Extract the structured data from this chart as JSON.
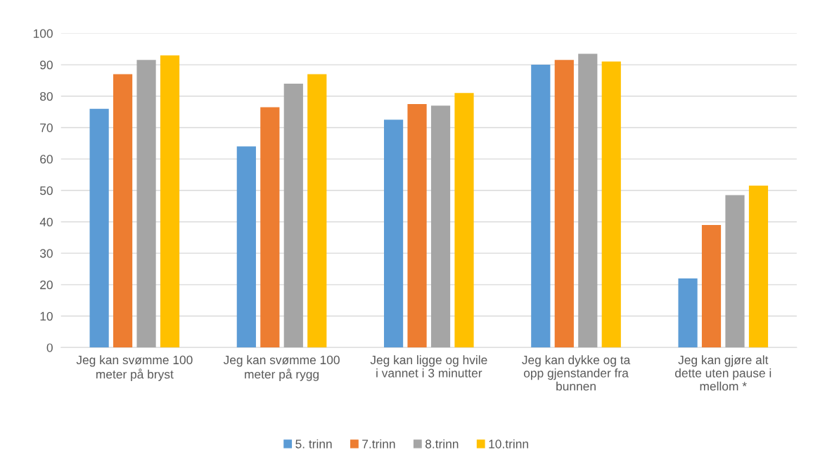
{
  "chart_data": {
    "type": "bar",
    "categories": [
      "Jeg kan svømme 100\nmeter på bryst",
      "Jeg kan svømme 100\nmeter på rygg",
      "Jeg kan ligge og hvile\ni vannet i 3 minutter",
      "Jeg kan dykke og ta\nopp gjenstander fra\nbunnen",
      "Jeg kan gjøre alt\ndette uten pause i\nmellom *"
    ],
    "series": [
      {
        "name": "5. trinn",
        "color": "#5b9bd5",
        "values": [
          76,
          64,
          72.5,
          90,
          22
        ]
      },
      {
        "name": "7.trinn",
        "color": "#ed7d31",
        "values": [
          87,
          76.5,
          77.5,
          91.5,
          39
        ]
      },
      {
        "name": "8.trinn",
        "color": "#a5a5a5",
        "values": [
          91.5,
          84,
          77,
          93.5,
          48.5
        ]
      },
      {
        "name": "10.trinn",
        "color": "#ffc000",
        "values": [
          93,
          87,
          81,
          91,
          51.5
        ]
      }
    ],
    "ylim": [
      0,
      100
    ],
    "yticks": [
      0,
      10,
      20,
      30,
      40,
      50,
      60,
      70,
      80,
      90,
      100
    ],
    "grid": "y",
    "legend": "bottom"
  }
}
